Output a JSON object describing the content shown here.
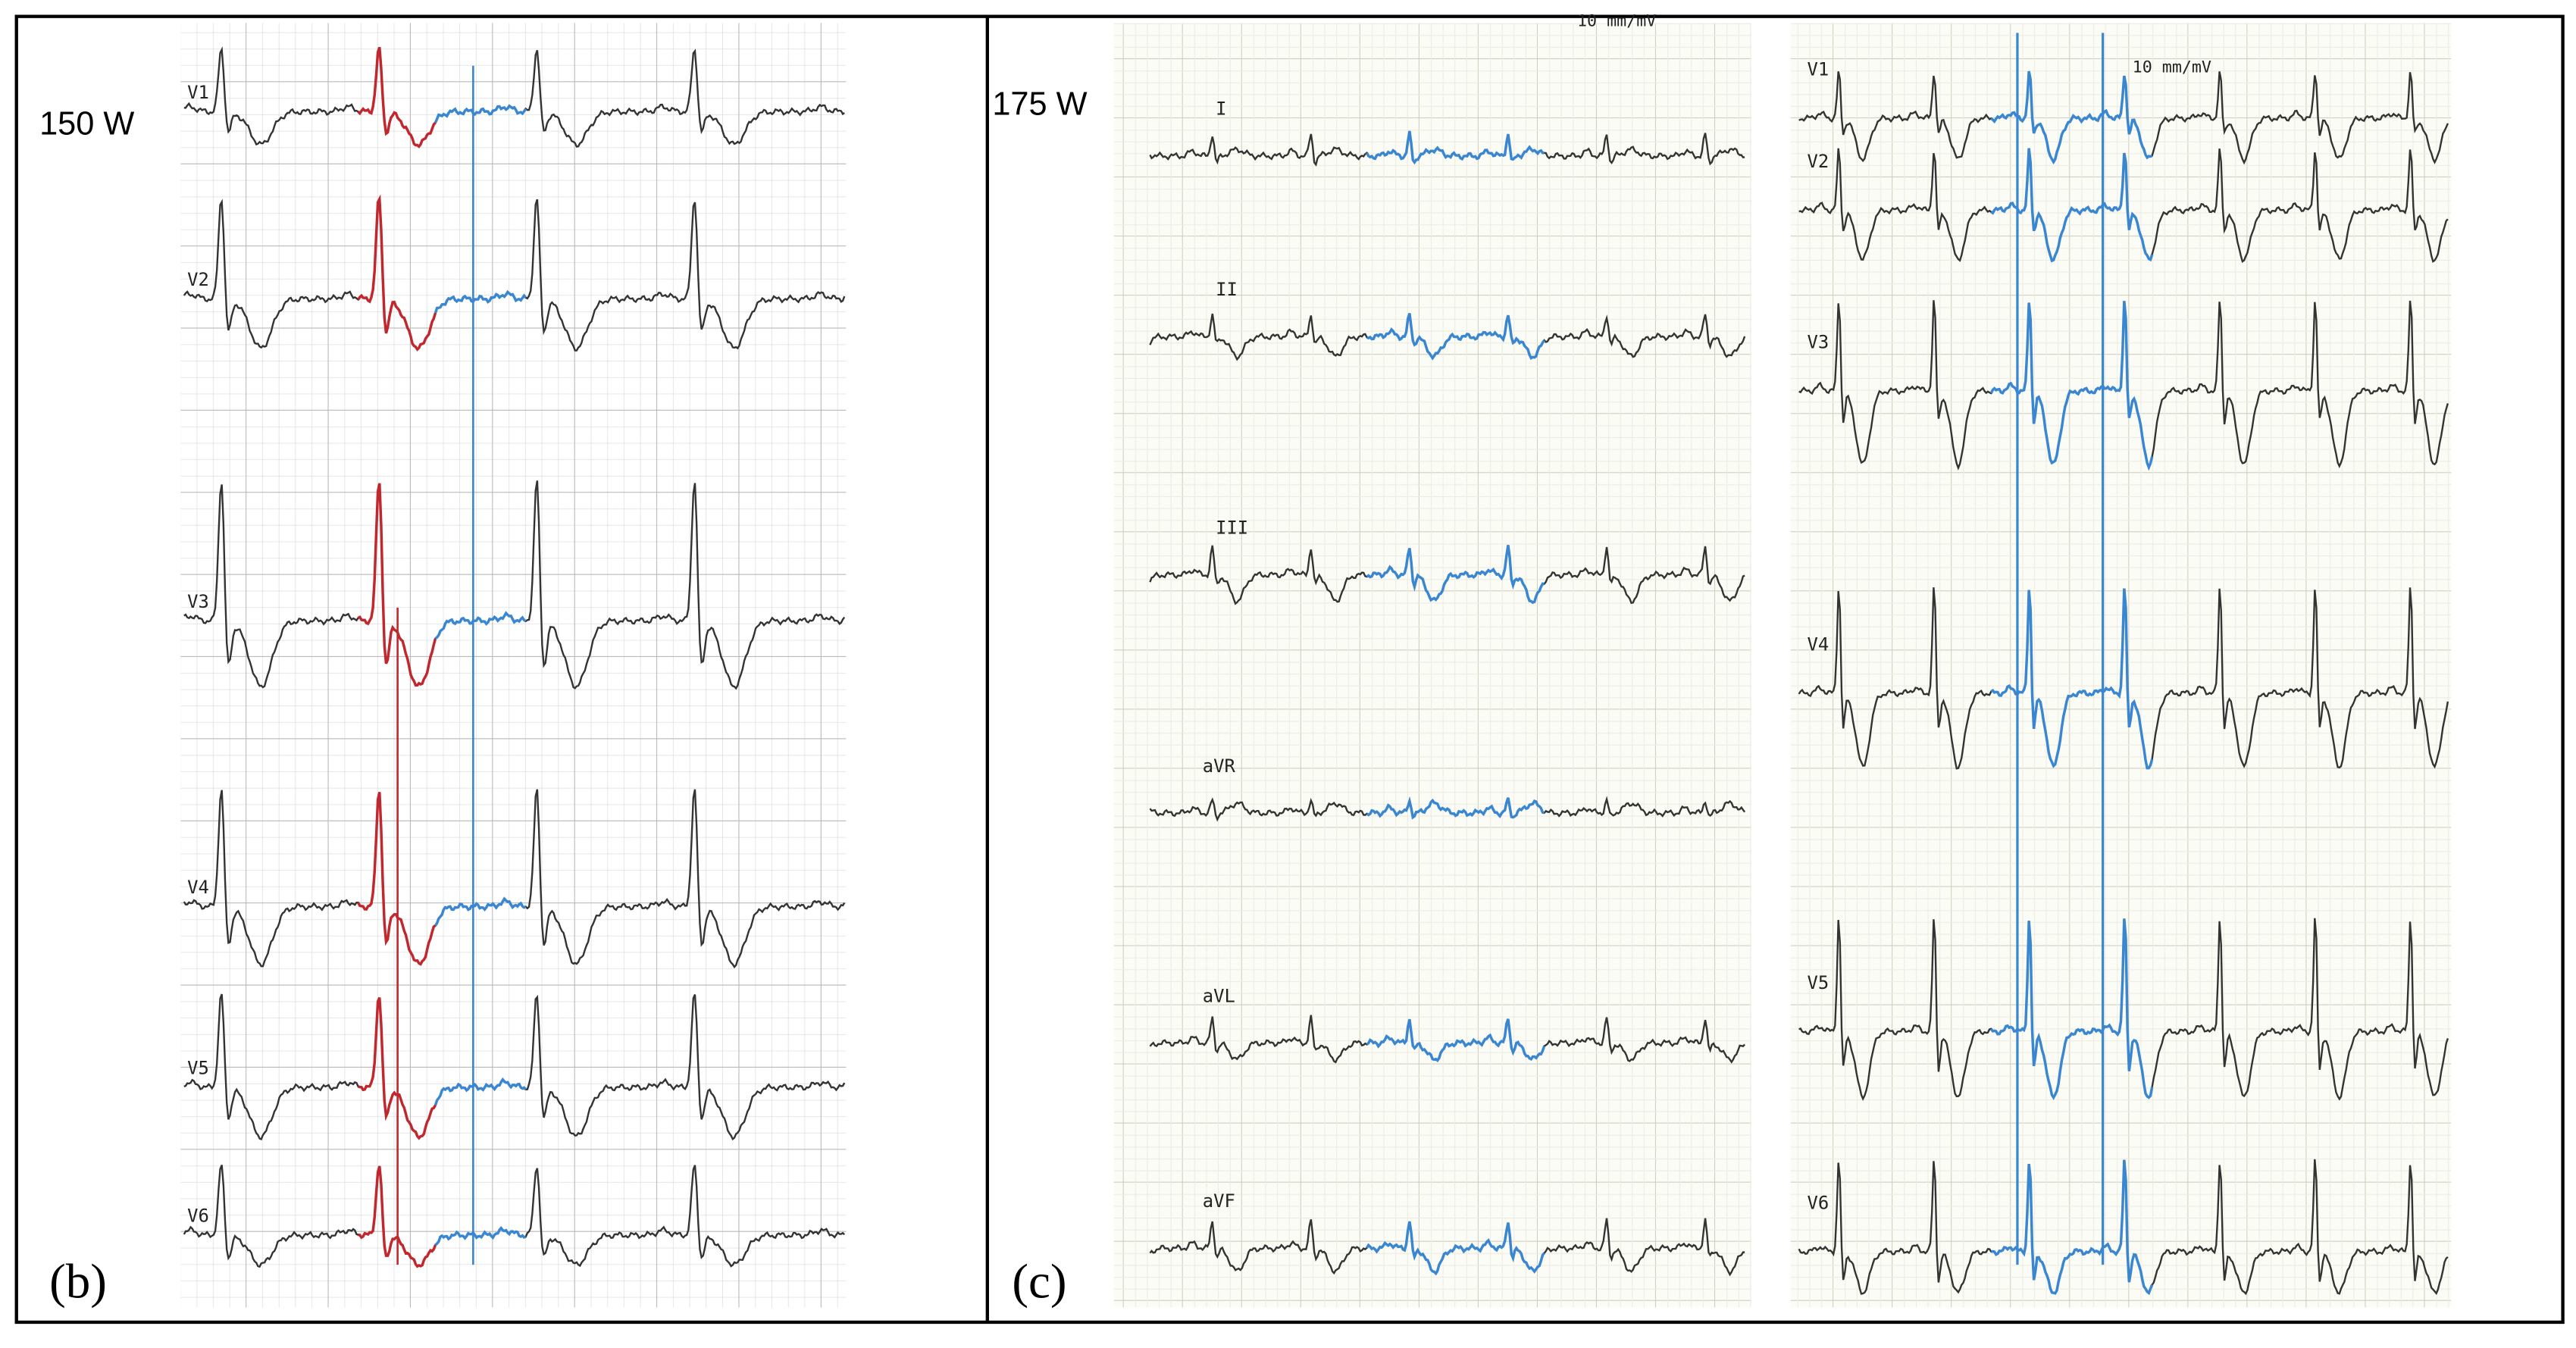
{
  "panel_b": {
    "load": "150 W",
    "label": "(b)",
    "leads": [
      "V1",
      "V2",
      "V3",
      "V4",
      "V5",
      "V6"
    ]
  },
  "panel_c": {
    "load": "175 W",
    "label": "(c)",
    "limb_leads": [
      "I",
      "II",
      "III",
      "aVR",
      "aVL",
      "aVF"
    ],
    "precordial_leads": [
      "V1",
      "V2",
      "V3",
      "V4",
      "V5",
      "V6"
    ],
    "calibration": [
      "10 mm/mV",
      "10 mm/mV"
    ]
  }
}
